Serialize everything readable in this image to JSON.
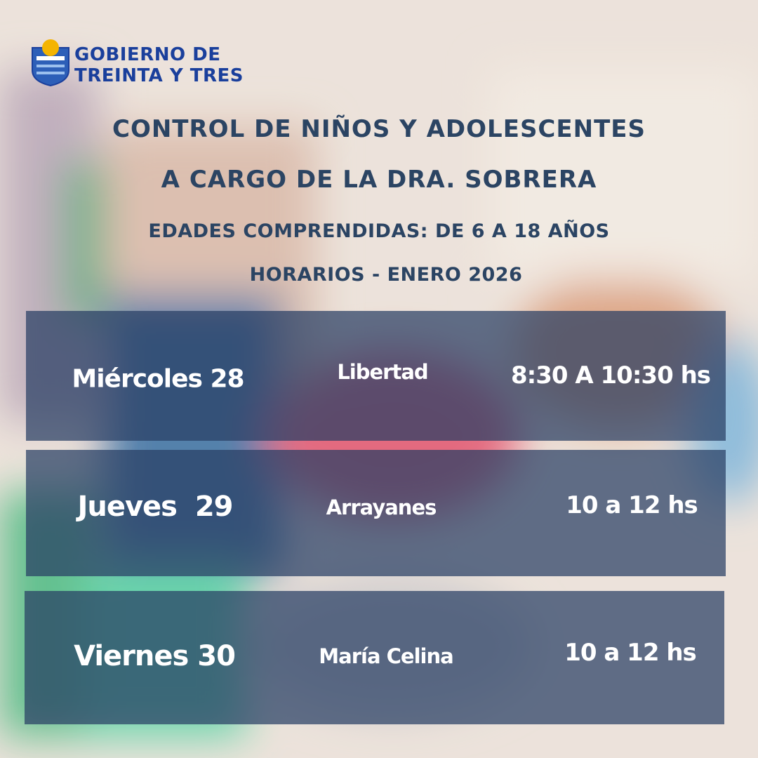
{
  "header": {
    "line1": "GOBIERNO DE",
    "line2": "TREINTA Y TRES"
  },
  "title": {
    "line1": "CONTROL DE NIÑOS Y ADOLESCENTES",
    "line2": "A CARGO DE LA DRA. SOBRERA"
  },
  "subtitle": {
    "ages": "EDADES COMPRENDIDAS: DE 6 A 18 AÑOS",
    "schedule": "HORARIOS  -  ENERO 2026"
  },
  "table": {
    "rows": [
      [
        "Miércoles 28",
        "Libertad",
        "8:30 A 10:30 hs"
      ],
      [
        "Jueves  29",
        "Arrayanes",
        "10 a 12 hs"
      ],
      [
        "Viernes 30",
        "María Celina",
        "10 a 12 hs"
      ]
    ]
  }
}
